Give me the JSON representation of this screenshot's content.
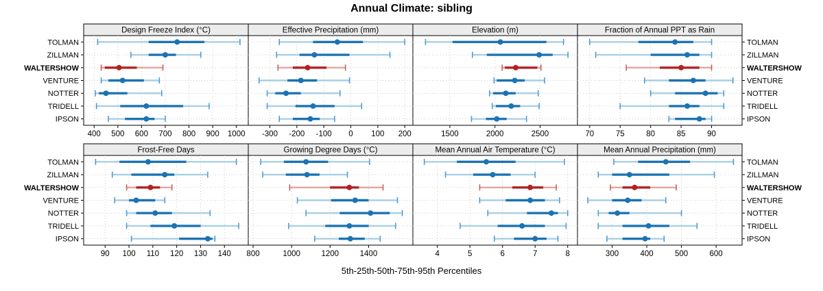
{
  "title": "Annual Climate: sibling",
  "xlabel": "5th-25th-50th-75th-95th Percentiles",
  "sites": [
    "TOLMAN",
    "ZILLMAN",
    "WALTERSHOW",
    "VENTURE",
    "NOTTER",
    "TRIDELL",
    "IPSON"
  ],
  "highlight_site": "WALTERSHOW",
  "colors": {
    "blue_dark": "#1b73b3",
    "blue_light": "#a9cfe5",
    "blue_cap": "#4f9cd1",
    "red_dark": "#b32220",
    "red_light": "#e3a59f",
    "red_cap": "#c9605a",
    "strip_bg": "#ececec",
    "panel_border": "#000000",
    "grid": "#c9c9c9",
    "text": "#000000"
  },
  "chart_data": {
    "type": "interval-dotplot",
    "note": "Each interval shows 5th-25th-50th-75th-95th percentiles per site; WALTERSHOW highlighted red",
    "percentile_labels": [
      "p5",
      "p25",
      "p50",
      "p75",
      "p95"
    ],
    "panels": [
      {
        "key": "design-freeze-index",
        "label": "Design Freeze Index (°C)",
        "row": 0,
        "col": 0,
        "xlim": [
          356,
          1050
        ],
        "ticks": [
          400,
          500,
          600,
          700,
          800,
          900,
          1000
        ],
        "values": [
          [
            415,
            630,
            750,
            865,
            1015
          ],
          [
            555,
            630,
            700,
            745,
            850
          ],
          [
            430,
            445,
            505,
            580,
            690
          ],
          [
            430,
            460,
            520,
            610,
            675
          ],
          [
            405,
            420,
            450,
            540,
            685
          ],
          [
            410,
            510,
            620,
            775,
            885
          ],
          [
            460,
            530,
            620,
            655,
            700
          ]
        ]
      },
      {
        "key": "effective-precipitation",
        "label": "Effective Precipitation (mm)",
        "row": 0,
        "col": 1,
        "xlim": [
          -380,
          230
        ],
        "ticks": [
          -300,
          -200,
          -100,
          0,
          100,
          200
        ],
        "values": [
          [
            -265,
            -140,
            -50,
            45,
            200
          ],
          [
            -275,
            -190,
            -135,
            -5,
            145
          ],
          [
            -270,
            -215,
            -160,
            -90,
            -20
          ],
          [
            -340,
            -235,
            -185,
            -125,
            -5
          ],
          [
            -310,
            -280,
            -240,
            -185,
            -40
          ],
          [
            -310,
            -205,
            -140,
            -60,
            40
          ],
          [
            -265,
            -215,
            -150,
            -115,
            -60
          ]
        ]
      },
      {
        "key": "elevation",
        "label": "Elevation (m)",
        "row": 0,
        "col": 2,
        "xlim": [
          1090,
          2915
        ],
        "ticks": [
          1500,
          2000,
          2500
        ],
        "values": [
          [
            1230,
            1530,
            2060,
            2570,
            2760
          ],
          [
            1750,
            1910,
            2490,
            2640,
            2810
          ],
          [
            2080,
            2110,
            2230,
            2470,
            2510
          ],
          [
            1990,
            2020,
            2220,
            2330,
            2550
          ],
          [
            1940,
            1980,
            2120,
            2230,
            2480
          ],
          [
            1970,
            2010,
            2180,
            2280,
            2490
          ],
          [
            1740,
            1900,
            2020,
            2130,
            2350
          ]
        ]
      },
      {
        "key": "fraction-annual-ppt-rain",
        "label": "Fraction of Annual PPT as Rain",
        "row": 0,
        "col": 3,
        "xlim": [
          68,
          95
        ],
        "ticks": [
          70,
          75,
          80,
          85,
          90
        ],
        "values": [
          [
            70,
            78,
            84,
            87,
            90
          ],
          [
            71,
            80,
            86,
            88,
            90
          ],
          [
            76,
            81.5,
            85,
            88,
            90
          ],
          [
            79,
            83,
            87,
            89,
            93.5
          ],
          [
            80,
            84,
            89,
            91,
            92
          ],
          [
            75,
            83,
            86,
            88,
            92
          ],
          [
            83,
            84,
            88,
            89,
            90
          ]
        ]
      },
      {
        "key": "frost-free-days",
        "label": "Frost-Free Days",
        "row": 1,
        "col": 0,
        "xlim": [
          81,
          150
        ],
        "ticks": [
          90,
          100,
          110,
          120,
          130,
          140
        ],
        "values": [
          [
            86,
            96,
            108,
            124,
            145
          ],
          [
            93,
            101,
            115,
            119,
            133
          ],
          [
            99,
            103,
            109,
            113,
            118
          ],
          [
            94,
            100,
            103,
            111,
            115
          ],
          [
            99,
            103,
            111,
            118,
            134
          ],
          [
            99,
            109,
            119,
            130,
            146
          ],
          [
            101,
            121,
            133,
            135,
            136
          ]
        ]
      },
      {
        "key": "growing-degree-days",
        "label": "Growing Degree Days (°C)",
        "row": 1,
        "col": 1,
        "xlim": [
          775,
          1630
        ],
        "ticks": [
          800,
          1000,
          1200,
          1400
        ],
        "values": [
          [
            840,
            960,
            1075,
            1190,
            1405
          ],
          [
            850,
            970,
            1080,
            1145,
            1290
          ],
          [
            990,
            1200,
            1300,
            1350,
            1475
          ],
          [
            1030,
            1205,
            1330,
            1400,
            1550
          ],
          [
            1075,
            1250,
            1410,
            1510,
            1575
          ],
          [
            985,
            1175,
            1300,
            1400,
            1540
          ],
          [
            1120,
            1245,
            1305,
            1380,
            1460
          ]
        ]
      },
      {
        "key": "mean-annual-air-temperature",
        "label": "Mean Annual Air Temperature (°C)",
        "row": 1,
        "col": 2,
        "xlim": [
          3.25,
          8.3
        ],
        "ticks": [
          4,
          5,
          6,
          7,
          8
        ],
        "values": [
          [
            3.6,
            4.6,
            5.5,
            6.4,
            7.9
          ],
          [
            4.25,
            5.1,
            5.7,
            6.25,
            7.0
          ],
          [
            5.3,
            6.3,
            6.85,
            7.25,
            7.65
          ],
          [
            5.3,
            6.1,
            6.85,
            7.3,
            7.75
          ],
          [
            5.55,
            6.75,
            7.5,
            7.7,
            8.0
          ],
          [
            4.7,
            5.85,
            6.6,
            7.3,
            7.95
          ],
          [
            5.75,
            6.35,
            7.0,
            7.35,
            7.7
          ]
        ]
      },
      {
        "key": "mean-annual-precipitation",
        "label": "Mean Annual Precipitation (mm)",
        "row": 1,
        "col": 3,
        "xlim": [
          200,
          675
        ],
        "ticks": [
          300,
          400,
          500,
          600
        ],
        "values": [
          [
            305,
            375,
            455,
            525,
            650
          ],
          [
            260,
            300,
            350,
            465,
            595
          ],
          [
            295,
            330,
            365,
            410,
            485
          ],
          [
            230,
            300,
            345,
            385,
            455
          ],
          [
            260,
            290,
            315,
            350,
            500
          ],
          [
            260,
            330,
            405,
            465,
            545
          ],
          [
            285,
            330,
            395,
            410,
            450
          ]
        ]
      }
    ]
  }
}
